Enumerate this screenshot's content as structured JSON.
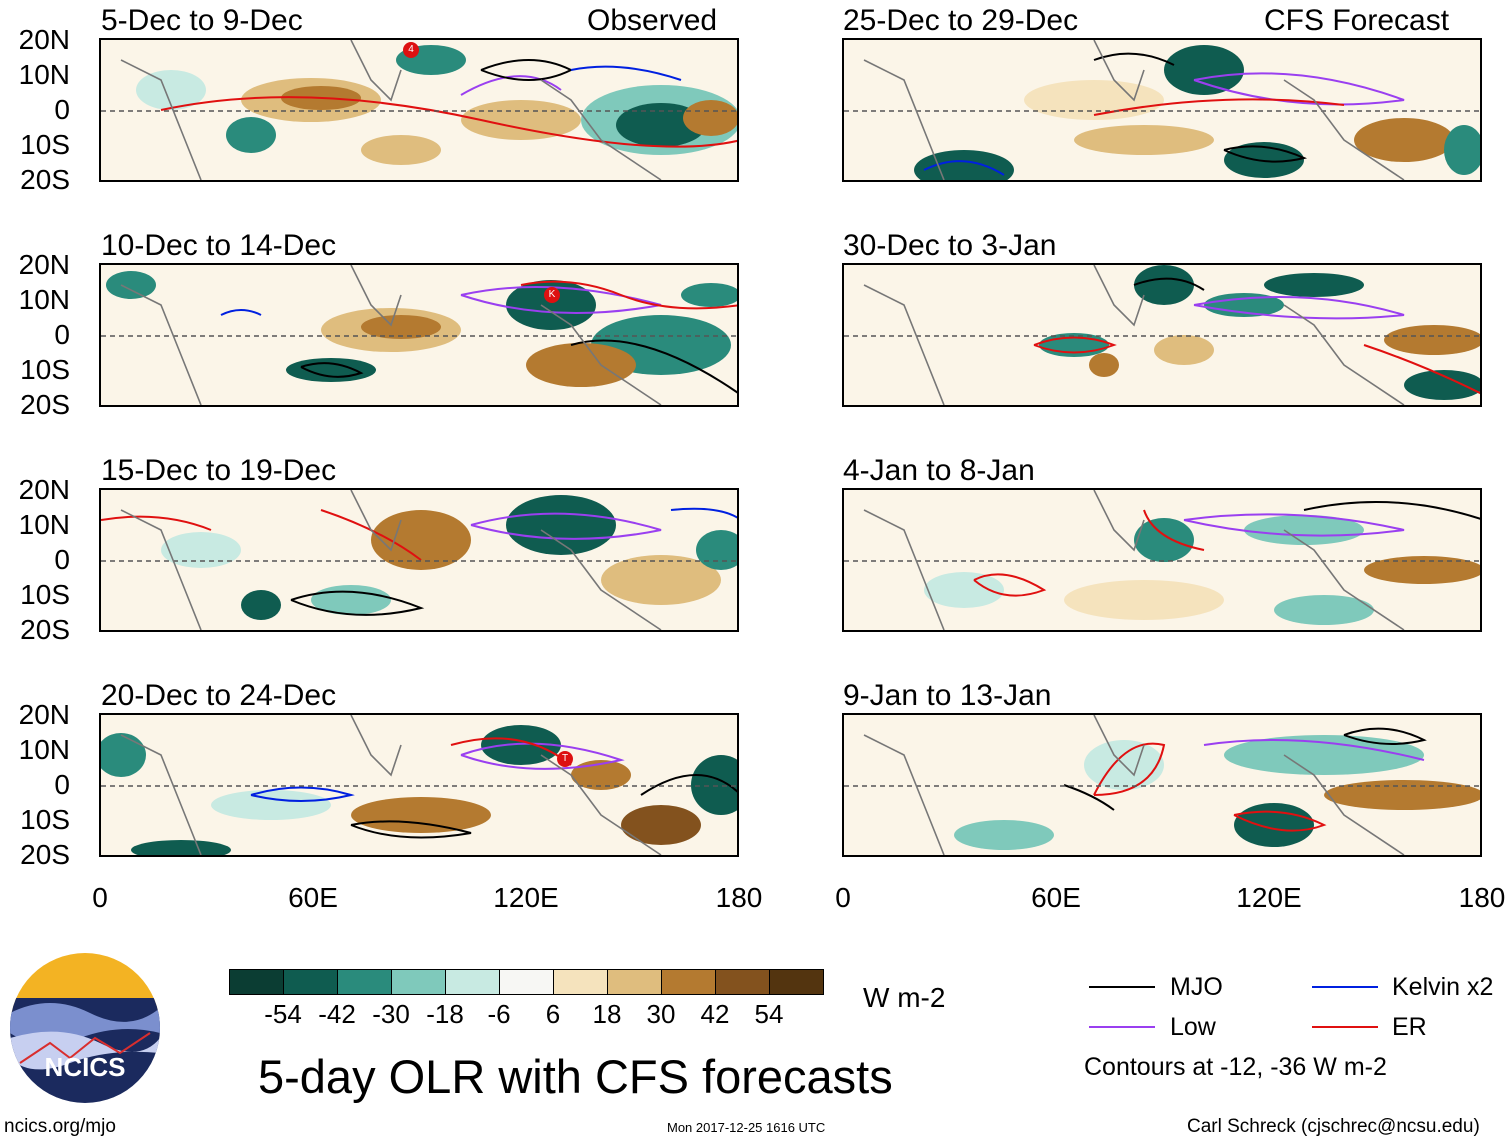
{
  "latitude_labels": [
    "20N",
    "10N",
    "0",
    "10S",
    "20S"
  ],
  "longitude_labels": [
    "0",
    "60E",
    "120E",
    "180"
  ],
  "left_column_label": "Observed",
  "right_column_label": "CFS Forecast",
  "panels": [
    {
      "period": "5-Dec to 9-Dec",
      "storms": [
        "4"
      ]
    },
    {
      "period": "10-Dec to 14-Dec",
      "storms": [
        "K"
      ]
    },
    {
      "period": "15-Dec to 19-Dec",
      "storms": []
    },
    {
      "period": "20-Dec to 24-Dec",
      "storms": [
        "T"
      ]
    },
    {
      "period": "25-Dec to 29-Dec",
      "storms": []
    },
    {
      "period": "30-Dec to 3-Jan",
      "storms": []
    },
    {
      "period": "4-Jan to 8-Jan",
      "storms": []
    },
    {
      "period": "9-Jan to 13-Jan",
      "storms": []
    }
  ],
  "colorbar": {
    "tick_labels": [
      "-54",
      "-42",
      "-30",
      "-18",
      "-6",
      "6",
      "18",
      "30",
      "42",
      "54"
    ],
    "colors": [
      "#0b3d33",
      "#0f5c50",
      "#2a8b7c",
      "#7fc9bb",
      "#c8eae2",
      "#f7f7f4",
      "#f5e3bd",
      "#dfbd7e",
      "#b47a30",
      "#83521e",
      "#53340f"
    ],
    "units": "W m-2"
  },
  "legend": {
    "items": [
      {
        "label": "MJO",
        "color": "#000000"
      },
      {
        "label": "Kelvin x2",
        "color": "#0020e0"
      },
      {
        "label": "Low",
        "color": "#9a3ff0"
      },
      {
        "label": "ER",
        "color": "#e01010"
      }
    ],
    "note": "Contours at -12, -36 W m-2"
  },
  "title": "5-day OLR with CFS forecasts",
  "logo_text": "NCICS",
  "footer": {
    "url": "ncics.org/mjo",
    "timestamp": "Mon 2017-12-25 1616 UTC",
    "credit": "Carl Schreck (cjschrec@ncsu.edu)"
  }
}
